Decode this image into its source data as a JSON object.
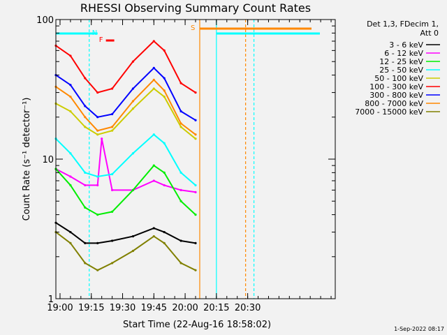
{
  "chart_data": {
    "type": "line",
    "title": "RHESSI Observing Summary Count Rates",
    "xlabel": "Start Time (22-Aug-16 18:58:02)",
    "ylabel": "Count Rate (s⁻¹ detector⁻¹)",
    "y_scale": "log",
    "ylim": [
      1,
      100
    ],
    "xlim": [
      "18:58",
      "21:12"
    ],
    "x_ticks": [
      "19:00",
      "19:15",
      "19:30",
      "19:45",
      "20:00",
      "20:15",
      "20:30"
    ],
    "y_ticks": [
      "1",
      "10",
      "100"
    ],
    "legend_header": [
      "Det 1,3, FDecim 1,",
      "Att 0"
    ],
    "legend_position": "top-right",
    "series": [
      {
        "name": "3 - 6 keV",
        "color": "#000000",
        "x": [
          "18:58",
          "19:05",
          "19:12",
          "19:18",
          "19:25",
          "19:35",
          "19:45",
          "19:50",
          "19:58",
          "20:05"
        ],
        "values": [
          3.5,
          3.0,
          2.5,
          2.5,
          2.6,
          2.8,
          3.2,
          3.0,
          2.6,
          2.5
        ]
      },
      {
        "name": "6 - 12 keV",
        "color": "#ff00ff",
        "x": [
          "18:58",
          "19:05",
          "19:12",
          "19:18",
          "19:20",
          "19:25",
          "19:35",
          "19:45",
          "19:50",
          "19:58",
          "20:05"
        ],
        "values": [
          8.5,
          7.5,
          6.5,
          6.5,
          14,
          6.0,
          6.0,
          7.0,
          6.5,
          6.0,
          5.8
        ]
      },
      {
        "name": "12 - 25 keV",
        "color": "#00ee00",
        "x": [
          "18:58",
          "19:05",
          "19:12",
          "19:18",
          "19:25",
          "19:35",
          "19:45",
          "19:50",
          "19:58",
          "20:05"
        ],
        "values": [
          8.5,
          6.5,
          4.5,
          4.0,
          4.2,
          6.0,
          9.0,
          8.0,
          5.0,
          4.0
        ]
      },
      {
        "name": "25 - 50 keV",
        "color": "#00ffff",
        "x": [
          "18:58",
          "19:05",
          "19:12",
          "19:18",
          "19:25",
          "19:35",
          "19:45",
          "19:50",
          "19:58",
          "20:05"
        ],
        "values": [
          14,
          11,
          8.0,
          7.5,
          7.8,
          11,
          15,
          13,
          8.0,
          6.5
        ]
      },
      {
        "name": "50 - 100 keV",
        "color": "#cccc00",
        "x": [
          "18:58",
          "19:05",
          "19:12",
          "19:18",
          "19:25",
          "19:35",
          "19:45",
          "19:50",
          "19:58",
          "20:05"
        ],
        "values": [
          25,
          22,
          17,
          15,
          16,
          23,
          32,
          28,
          17,
          14
        ]
      },
      {
        "name": "100 - 300 keV",
        "color": "#ff0000",
        "x": [
          "18:58",
          "19:05",
          "19:12",
          "19:18",
          "19:25",
          "19:35",
          "19:45",
          "19:50",
          "19:58",
          "20:05"
        ],
        "values": [
          65,
          55,
          38,
          30,
          32,
          50,
          70,
          60,
          35,
          30
        ]
      },
      {
        "name": "300 - 800 keV",
        "color": "#0000ff",
        "x": [
          "18:58",
          "19:05",
          "19:12",
          "19:18",
          "19:25",
          "19:35",
          "19:45",
          "19:50",
          "19:58",
          "20:05"
        ],
        "values": [
          40,
          34,
          24,
          20,
          21,
          32,
          45,
          38,
          22,
          19
        ]
      },
      {
        "name": "800 - 7000 keV",
        "color": "#ff8800",
        "x": [
          "18:58",
          "19:05",
          "19:12",
          "19:18",
          "19:25",
          "19:35",
          "19:45",
          "19:50",
          "19:58",
          "20:05"
        ],
        "values": [
          33,
          28,
          20,
          16,
          17,
          26,
          37,
          31,
          18,
          15
        ]
      },
      {
        "name": "7000 - 15000 keV",
        "color": "#808000",
        "x": [
          "18:58",
          "19:05",
          "19:12",
          "19:18",
          "19:25",
          "19:35",
          "19:45",
          "19:50",
          "19:58",
          "20:05"
        ],
        "values": [
          3.0,
          2.5,
          1.8,
          1.6,
          1.8,
          2.2,
          2.8,
          2.5,
          1.8,
          1.6
        ]
      }
    ],
    "annotations": [
      {
        "text": "N",
        "color": "#00ffff"
      },
      {
        "text": "F",
        "color": "#ff0000"
      },
      {
        "text": "S",
        "color": "#ff8800"
      }
    ]
  },
  "timestamp": "1-Sep-2022 08:17"
}
